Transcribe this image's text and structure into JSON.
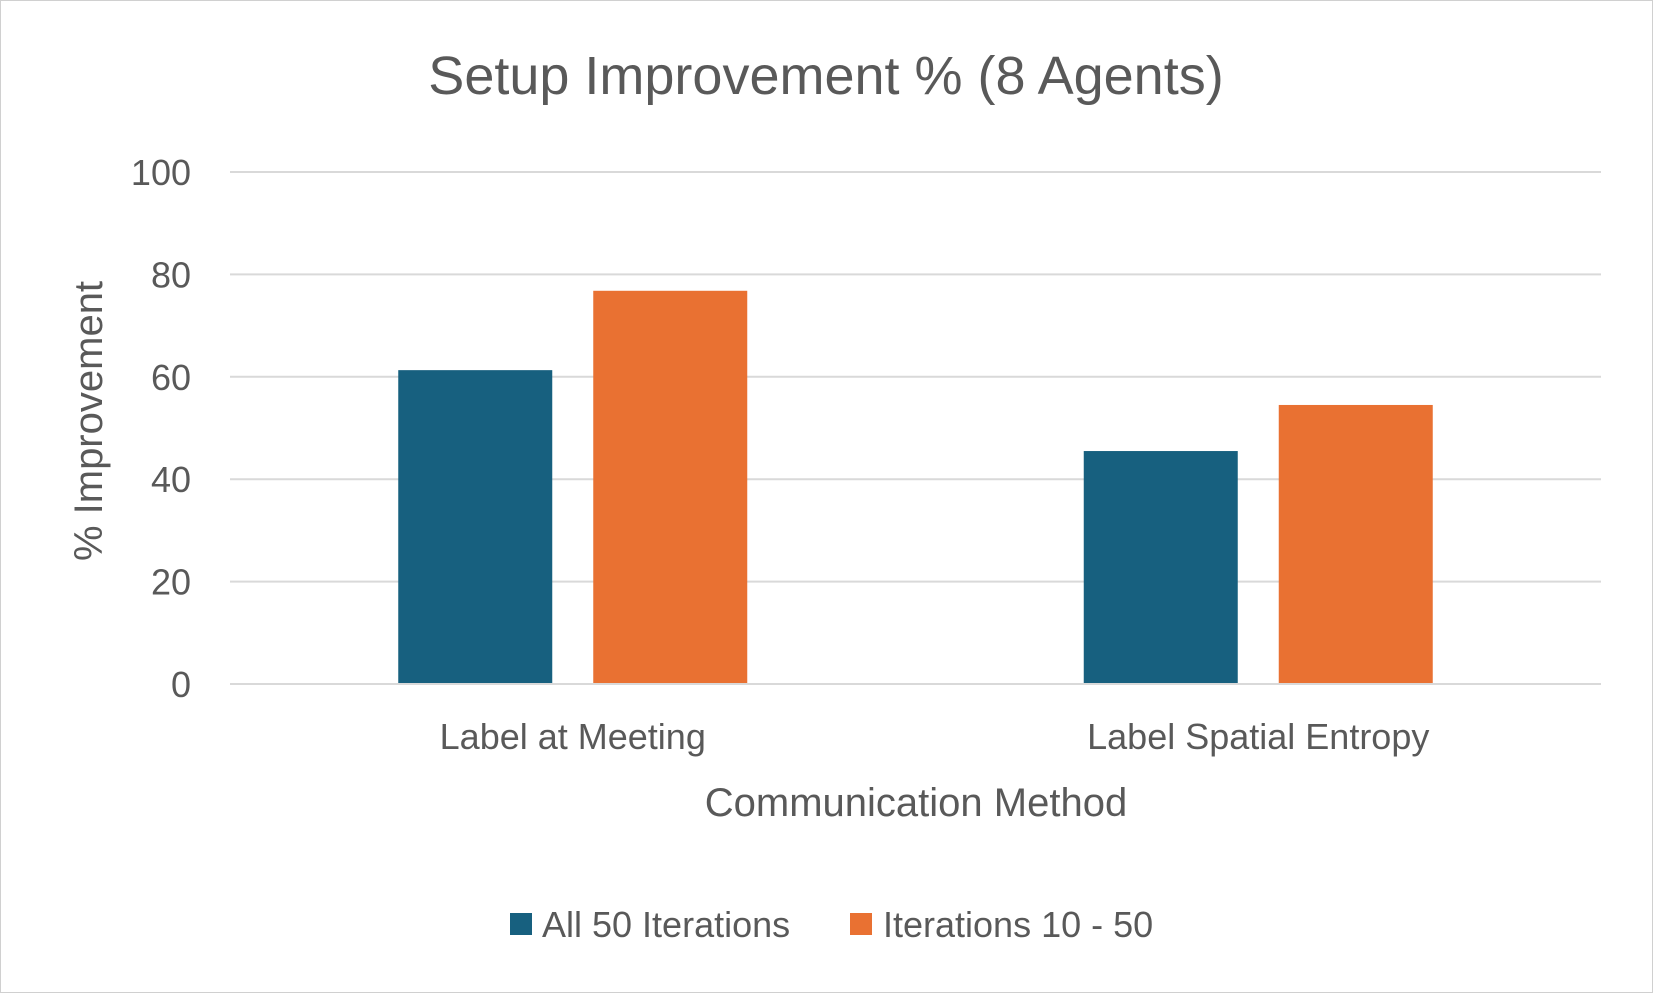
{
  "chart_data": {
    "type": "bar",
    "title": "Setup Improvement % (8 Agents)",
    "xlabel": "Communication Method",
    "ylabel": "% Improvement",
    "categories": [
      "Label at Meeting",
      "Label Spatial Entropy"
    ],
    "series": [
      {
        "name": "All 50 Iterations",
        "values": [
          61.3,
          45.5
        ],
        "color": "#17607f"
      },
      {
        "name": "Iterations 10 - 50",
        "values": [
          76.8,
          54.5
        ],
        "color": "#e97132"
      }
    ],
    "ylim": [
      0,
      100
    ],
    "yticks": [
      0,
      20,
      40,
      60,
      80,
      100
    ],
    "grid": true,
    "legend_position": "bottom"
  }
}
